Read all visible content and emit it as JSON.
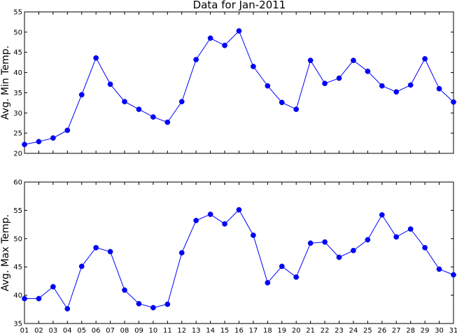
{
  "title": "Data for Jan-2011",
  "colors": {
    "series": "#0000ff",
    "marker": "#0000cc",
    "axes": "#000000",
    "background": "#ffffff"
  },
  "chart_data": [
    {
      "type": "line",
      "title": "Data for Jan-2011",
      "xlabel": "",
      "ylabel": "Avg. Min Temp.",
      "x": [
        "01",
        "02",
        "03",
        "04",
        "05",
        "06",
        "07",
        "08",
        "09",
        "10",
        "11",
        "12",
        "13",
        "14",
        "15",
        "16",
        "17",
        "18",
        "19",
        "20",
        "21",
        "22",
        "23",
        "24",
        "25",
        "26",
        "27",
        "28",
        "29",
        "30",
        "31"
      ],
      "values": [
        22.2,
        22.9,
        23.8,
        25.7,
        34.5,
        43.6,
        37.1,
        32.8,
        30.9,
        29.0,
        27.7,
        32.8,
        43.2,
        48.5,
        46.7,
        50.3,
        41.5,
        36.7,
        32.6,
        30.9,
        43.0,
        37.3,
        38.6,
        43.0,
        40.3,
        36.7,
        35.2,
        36.9,
        43.4,
        36.0,
        32.7
      ],
      "ylim": [
        20,
        55
      ],
      "yticks": [
        "20",
        "25",
        "30",
        "35",
        "40",
        "45",
        "50",
        "55"
      ],
      "grid": false,
      "marker": "circle",
      "xtick_labels_visible": false
    },
    {
      "type": "line",
      "title": "",
      "xlabel": "",
      "ylabel": "Avg. Max Temp.",
      "x": [
        "01",
        "02",
        "03",
        "04",
        "05",
        "06",
        "07",
        "08",
        "09",
        "10",
        "11",
        "12",
        "13",
        "14",
        "15",
        "16",
        "17",
        "18",
        "19",
        "20",
        "21",
        "22",
        "23",
        "24",
        "25",
        "26",
        "27",
        "28",
        "29",
        "30",
        "31"
      ],
      "values": [
        39.4,
        39.4,
        41.5,
        37.6,
        45.1,
        48.4,
        47.7,
        40.9,
        38.5,
        37.8,
        38.4,
        47.5,
        53.2,
        54.3,
        52.6,
        55.1,
        50.6,
        42.2,
        45.1,
        43.2,
        49.2,
        49.4,
        46.7,
        47.9,
        49.8,
        54.2,
        50.3,
        51.7,
        48.4,
        44.6,
        43.6
      ],
      "ylim": [
        35,
        60
      ],
      "yticks": [
        "35",
        "40",
        "45",
        "50",
        "55",
        "60"
      ],
      "grid": false,
      "marker": "circle",
      "xtick_labels_visible": true
    }
  ]
}
